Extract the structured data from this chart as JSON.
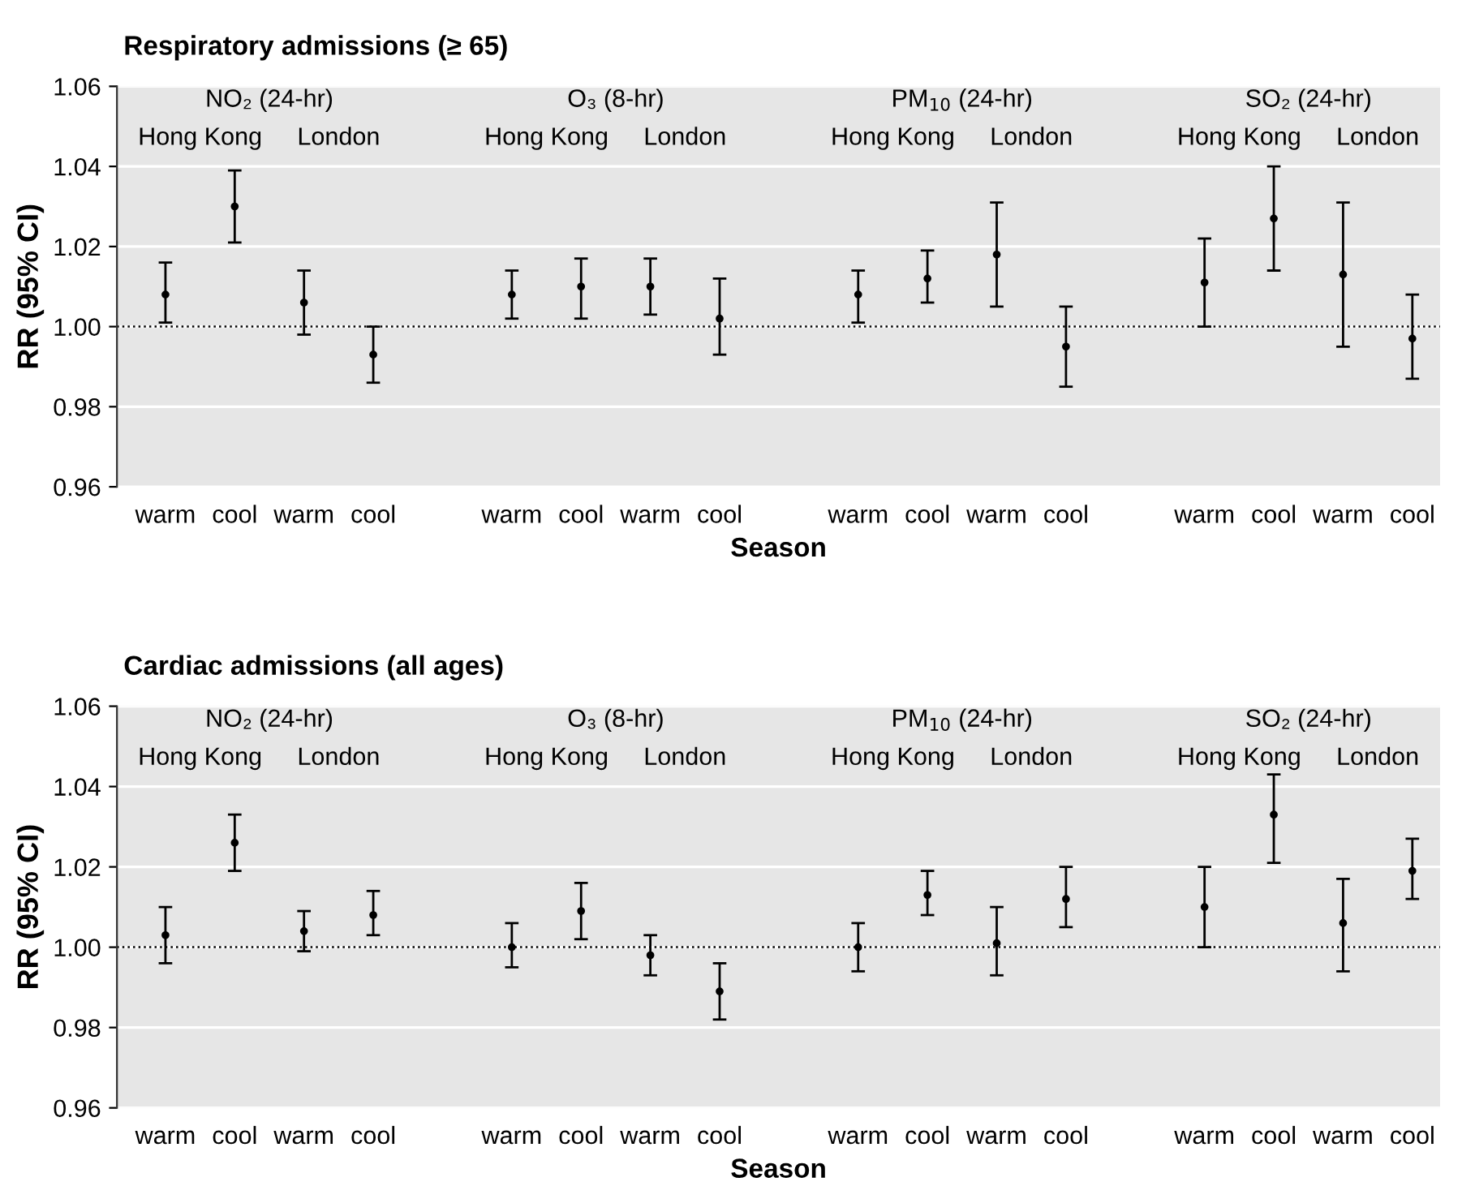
{
  "chart_data": [
    {
      "type": "scatter",
      "title": "Respiratory admissions (≥ 65)",
      "xlabel": "Season",
      "ylabel": "RR (95% CI)",
      "categories": [
        "warm",
        "cool",
        "warm",
        "cool",
        null,
        "warm",
        "cool",
        "warm",
        "cool",
        null,
        "warm",
        "cool",
        "warm",
        "cool",
        null,
        "warm",
        "cool",
        "warm",
        "cool"
      ],
      "series": [
        {
          "color": "#000000",
          "values": [
            1.008,
            1.03,
            1.006,
            0.993,
            null,
            1.008,
            1.01,
            1.01,
            1.002,
            null,
            1.008,
            1.012,
            1.018,
            0.995,
            null,
            1.011,
            1.027,
            1.013,
            0.997
          ],
          "errors": [
            [
              1.001,
              1.016
            ],
            [
              1.021,
              1.039
            ],
            [
              0.998,
              1.014
            ],
            [
              0.986,
              1.0
            ],
            null,
            [
              1.002,
              1.014
            ],
            [
              1.002,
              1.017
            ],
            [
              1.003,
              1.017
            ],
            [
              0.993,
              1.012
            ],
            null,
            [
              1.001,
              1.014
            ],
            [
              1.006,
              1.019
            ],
            [
              1.005,
              1.031
            ],
            [
              0.985,
              1.005
            ],
            null,
            [
              1.0,
              1.022
            ],
            [
              1.014,
              1.04
            ],
            [
              0.995,
              1.031
            ],
            [
              0.987,
              1.008
            ]
          ]
        }
      ],
      "annotations": [
        "NO₂ (24-hr)",
        "O₃ (8-hr)",
        "PM$_{10}$ (24-hr)",
        "SO₂ (24-hr)",
        "Hong Kong",
        "London",
        "Hong Kong",
        "London",
        "Hong Kong",
        "London",
        "Hong Kong",
        "London"
      ],
      "ylim": [
        0.96,
        1.06
      ],
      "yticks": [
        0.96,
        0.98,
        {
          "value": 1.0,
          "label": "1.00"
        },
        1.02,
        1.04,
        1.06
      ],
      "ref_lines": [
        {
          "axis": "y",
          "value": 1.0,
          "line_style": "dotted",
          "color": "#000000"
        }
      ],
      "grid": "y",
      "marker": "circle"
    },
    {
      "type": "scatter",
      "title": "Cardiac admissions (all ages)",
      "xlabel": "Season",
      "ylabel": "RR (95% CI)",
      "categories": [
        "warm",
        "cool",
        "warm",
        "cool",
        null,
        "warm",
        "cool",
        "warm",
        "cool",
        null,
        "warm",
        "cool",
        "warm",
        "cool",
        null,
        "warm",
        "cool",
        "warm",
        "cool"
      ],
      "series": [
        {
          "color": "#000000",
          "values": [
            1.003,
            1.026,
            1.004,
            1.008,
            null,
            1.0,
            1.009,
            0.998,
            0.989,
            null,
            1.0,
            1.013,
            1.001,
            1.012,
            null,
            1.01,
            1.033,
            1.006,
            1.019
          ],
          "errors": [
            [
              0.996,
              1.01
            ],
            [
              1.019,
              1.033
            ],
            [
              0.999,
              1.009
            ],
            [
              1.003,
              1.014
            ],
            null,
            [
              0.995,
              1.006
            ],
            [
              1.002,
              1.016
            ],
            [
              0.993,
              1.003
            ],
            [
              0.982,
              0.996
            ],
            null,
            [
              0.994,
              1.006
            ],
            [
              1.008,
              1.019
            ],
            [
              0.993,
              1.01
            ],
            [
              1.005,
              1.02
            ],
            null,
            [
              1.0,
              1.02
            ],
            [
              1.021,
              1.043
            ],
            [
              0.994,
              1.017
            ],
            [
              1.012,
              1.027
            ]
          ]
        }
      ],
      "annotations": [
        "NO₂ (24-hr)",
        "O₃ (8-hr)",
        "PM$_{10}$ (24-hr)",
        "SO₂ (24-hr)",
        "Hong Kong",
        "London",
        "Hong Kong",
        "London",
        "Hong Kong",
        "London",
        "Hong Kong",
        "London"
      ],
      "ylim": [
        0.96,
        1.06
      ],
      "yticks": [
        0.96,
        0.98,
        {
          "value": 1.0,
          "label": "1.00"
        },
        1.02,
        1.04,
        1.06
      ],
      "ref_lines": [
        {
          "axis": "y",
          "value": 1.0,
          "line_style": "dotted",
          "color": "#000000"
        }
      ],
      "grid": "y",
      "marker": "circle"
    }
  ]
}
